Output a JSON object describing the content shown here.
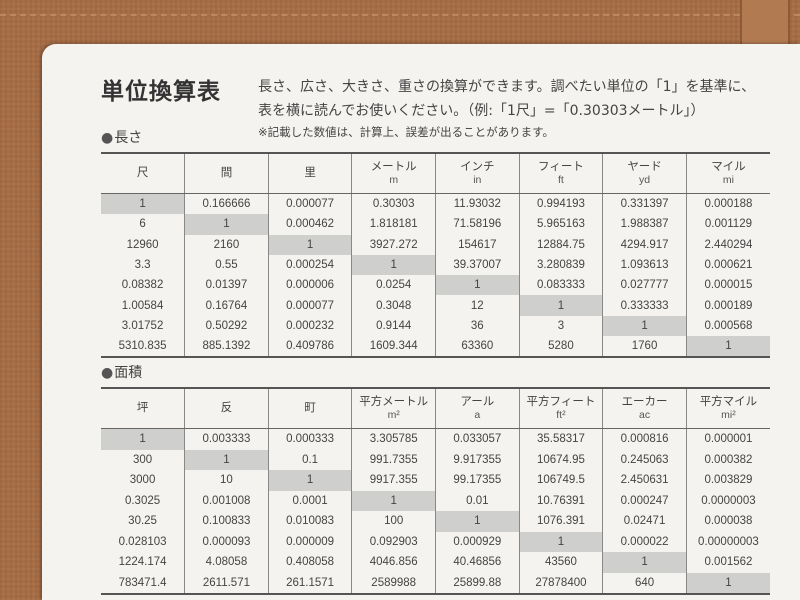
{
  "title": "単位換算表",
  "description": [
    "長さ、広さ、大きさ、重さの換算ができます。調べたい単位の「1」を基準に、",
    "表を横に読んでお使いください。（例:「1尺」=「0.30303メートル」）"
  ],
  "note": "※記載した数値は、計算上、誤差が出ることがあります。",
  "length": {
    "label": "長さ",
    "headers": [
      [
        "尺",
        ""
      ],
      [
        "間",
        ""
      ],
      [
        "里",
        ""
      ],
      [
        "メートル",
        "m"
      ],
      [
        "インチ",
        "in"
      ],
      [
        "フィート",
        "ft"
      ],
      [
        "ヤード",
        "yd"
      ],
      [
        "マイル",
        "mi"
      ]
    ],
    "rows": [
      [
        "1",
        "0.166666",
        "0.000077",
        "0.30303",
        "11.93032",
        "0.994193",
        "0.331397",
        "0.000188"
      ],
      [
        "6",
        "1",
        "0.000462",
        "1.818181",
        "71.58196",
        "5.965163",
        "1.988387",
        "0.001129"
      ],
      [
        "12960",
        "2160",
        "1",
        "3927.272",
        "154617",
        "12884.75",
        "4294.917",
        "2.440294"
      ],
      [
        "3.3",
        "0.55",
        "0.000254",
        "1",
        "39.37007",
        "3.280839",
        "1.093613",
        "0.000621"
      ],
      [
        "0.08382",
        "0.01397",
        "0.000006",
        "0.0254",
        "1",
        "0.083333",
        "0.027777",
        "0.000015"
      ],
      [
        "1.00584",
        "0.16764",
        "0.000077",
        "0.3048",
        "12",
        "1",
        "0.333333",
        "0.000189"
      ],
      [
        "3.01752",
        "0.50292",
        "0.000232",
        "0.9144",
        "36",
        "3",
        "1",
        "0.000568"
      ],
      [
        "5310.835",
        "885.1392",
        "0.409786",
        "1609.344",
        "63360",
        "5280",
        "1760",
        "1"
      ]
    ]
  },
  "area": {
    "label": "面積",
    "headers": [
      [
        "坪",
        ""
      ],
      [
        "反",
        ""
      ],
      [
        "町",
        ""
      ],
      [
        "平方メートル",
        "m²"
      ],
      [
        "アール",
        "a"
      ],
      [
        "平方フィート",
        "ft²"
      ],
      [
        "エーカー",
        "ac"
      ],
      [
        "平方マイル",
        "mi²"
      ]
    ],
    "rows": [
      [
        "1",
        "0.003333",
        "0.000333",
        "3.305785",
        "0.033057",
        "35.58317",
        "0.000816",
        "0.000001"
      ],
      [
        "300",
        "1",
        "0.1",
        "991.7355",
        "9.917355",
        "10674.95",
        "0.245063",
        "0.000382"
      ],
      [
        "3000",
        "10",
        "1",
        "9917.355",
        "99.17355",
        "106749.5",
        "2.450631",
        "0.003829"
      ],
      [
        "0.3025",
        "0.001008",
        "0.0001",
        "1",
        "0.01",
        "10.76391",
        "0.000247",
        "0.0000003"
      ],
      [
        "30.25",
        "0.100833",
        "0.010083",
        "100",
        "1",
        "1076.391",
        "0.02471",
        "0.000038"
      ],
      [
        "0.028103",
        "0.000093",
        "0.000009",
        "0.092903",
        "0.000929",
        "1",
        "0.000022",
        "0.00000003"
      ],
      [
        "1224.174",
        "4.08058",
        "0.408058",
        "4046.856",
        "40.46856",
        "43560",
        "1",
        "0.001562"
      ],
      [
        "783471.4",
        "2611.571",
        "261.1571",
        "2589988",
        "25899.88",
        "27878400",
        "640",
        "1"
      ]
    ]
  },
  "colors": {
    "fabric": "#a66d45",
    "paper": "#f4f3ef",
    "highlight": "#cfcfcd"
  }
}
